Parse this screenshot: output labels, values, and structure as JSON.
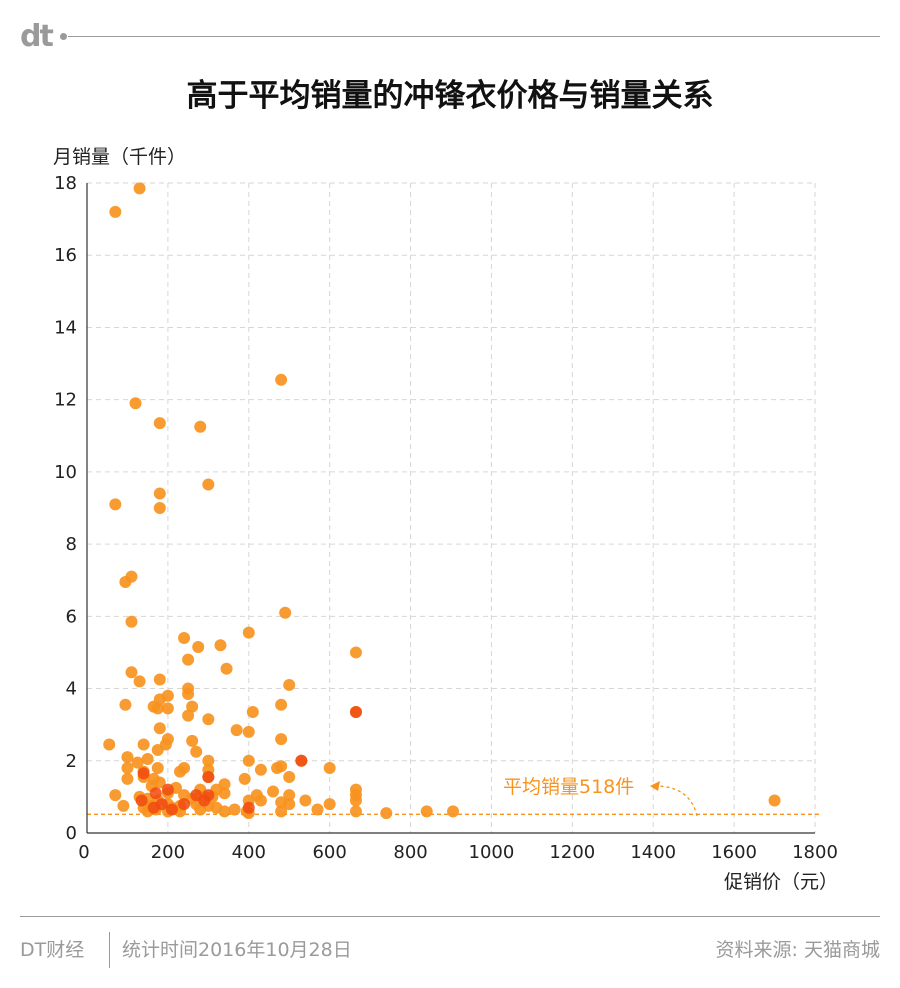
{
  "brand": {
    "logo_text": "dt"
  },
  "title": "高于平均销量的冲锋衣价格与销量关系",
  "footer": {
    "left": "DT财经",
    "middle": "统计时间2016年10月28日",
    "right": "资料来源: 天猫商城"
  },
  "colors": {
    "point_fill": "#F7931E",
    "overlap_fill": "#F04A0F",
    "average_line": "#F7931E",
    "grid": "#d6d6d6",
    "axis": "#333333",
    "muted": "#9a9a9a"
  },
  "chart_data": {
    "type": "scatter",
    "title": "高于平均销量的冲锋衣价格与销量关系",
    "xlabel": "促销价（元）",
    "ylabel": "月销量（千件）",
    "xlim": [
      0,
      1800
    ],
    "ylim": [
      0,
      18
    ],
    "xticks": [
      0,
      200,
      400,
      600,
      800,
      1000,
      1200,
      1400,
      1600,
      1800
    ],
    "yticks": [
      0,
      2,
      4,
      6,
      8,
      10,
      12,
      14,
      16,
      18
    ],
    "grid": true,
    "average_line": {
      "value": 0.518,
      "label": "平均销量518件"
    },
    "points": [
      {
        "x": 130,
        "y": 17.85
      },
      {
        "x": 70,
        "y": 17.2
      },
      {
        "x": 120,
        "y": 11.9
      },
      {
        "x": 180,
        "y": 11.35
      },
      {
        "x": 280,
        "y": 11.25
      },
      {
        "x": 480,
        "y": 12.55
      },
      {
        "x": 300,
        "y": 9.65
      },
      {
        "x": 180,
        "y": 9.4
      },
      {
        "x": 180,
        "y": 9.0
      },
      {
        "x": 70,
        "y": 9.1
      },
      {
        "x": 110,
        "y": 7.1
      },
      {
        "x": 95,
        "y": 6.95
      },
      {
        "x": 110,
        "y": 5.85
      },
      {
        "x": 490,
        "y": 6.1
      },
      {
        "x": 665,
        "y": 5.0
      },
      {
        "x": 400,
        "y": 5.55
      },
      {
        "x": 240,
        "y": 5.4
      },
      {
        "x": 275,
        "y": 5.15
      },
      {
        "x": 330,
        "y": 5.2
      },
      {
        "x": 250,
        "y": 4.8
      },
      {
        "x": 345,
        "y": 4.55
      },
      {
        "x": 110,
        "y": 4.45
      },
      {
        "x": 130,
        "y": 4.2
      },
      {
        "x": 180,
        "y": 4.25
      },
      {
        "x": 500,
        "y": 4.1
      },
      {
        "x": 250,
        "y": 4.0
      },
      {
        "x": 200,
        "y": 3.8
      },
      {
        "x": 250,
        "y": 3.85
      },
      {
        "x": 180,
        "y": 3.7
      },
      {
        "x": 95,
        "y": 3.55
      },
      {
        "x": 165,
        "y": 3.5
      },
      {
        "x": 175,
        "y": 3.45
      },
      {
        "x": 200,
        "y": 3.45
      },
      {
        "x": 260,
        "y": 3.5
      },
      {
        "x": 250,
        "y": 3.25
      },
      {
        "x": 300,
        "y": 3.15
      },
      {
        "x": 410,
        "y": 3.35
      },
      {
        "x": 480,
        "y": 3.55
      },
      {
        "x": 665,
        "y": 3.35
      },
      {
        "x": 180,
        "y": 2.9
      },
      {
        "x": 370,
        "y": 2.85
      },
      {
        "x": 400,
        "y": 2.8
      },
      {
        "x": 480,
        "y": 2.6
      },
      {
        "x": 55,
        "y": 2.45
      },
      {
        "x": 140,
        "y": 2.45
      },
      {
        "x": 195,
        "y": 2.45
      },
      {
        "x": 175,
        "y": 2.3
      },
      {
        "x": 200,
        "y": 2.6
      },
      {
        "x": 260,
        "y": 2.55
      },
      {
        "x": 270,
        "y": 2.25
      },
      {
        "x": 300,
        "y": 2.0
      },
      {
        "x": 400,
        "y": 2.0
      },
      {
        "x": 100,
        "y": 2.1
      },
      {
        "x": 150,
        "y": 2.05
      },
      {
        "x": 125,
        "y": 1.95
      },
      {
        "x": 100,
        "y": 1.8
      },
      {
        "x": 140,
        "y": 1.7
      },
      {
        "x": 175,
        "y": 1.8
      },
      {
        "x": 230,
        "y": 1.7
      },
      {
        "x": 240,
        "y": 1.8
      },
      {
        "x": 300,
        "y": 1.75
      },
      {
        "x": 300,
        "y": 1.55
      },
      {
        "x": 430,
        "y": 1.75
      },
      {
        "x": 470,
        "y": 1.8
      },
      {
        "x": 480,
        "y": 1.85
      },
      {
        "x": 500,
        "y": 1.55
      },
      {
        "x": 600,
        "y": 1.8
      },
      {
        "x": 530,
        "y": 2.0
      },
      {
        "x": 100,
        "y": 1.5
      },
      {
        "x": 165,
        "y": 1.5
      },
      {
        "x": 180,
        "y": 1.4
      },
      {
        "x": 140,
        "y": 1.55
      },
      {
        "x": 160,
        "y": 1.3
      },
      {
        "x": 220,
        "y": 1.25
      },
      {
        "x": 280,
        "y": 1.2
      },
      {
        "x": 320,
        "y": 1.2
      },
      {
        "x": 340,
        "y": 1.35
      },
      {
        "x": 390,
        "y": 1.5
      },
      {
        "x": 420,
        "y": 1.05
      },
      {
        "x": 460,
        "y": 1.15
      },
      {
        "x": 500,
        "y": 1.05
      },
      {
        "x": 665,
        "y": 1.2
      },
      {
        "x": 665,
        "y": 1.05
      },
      {
        "x": 70,
        "y": 1.05
      },
      {
        "x": 130,
        "y": 1.0
      },
      {
        "x": 150,
        "y": 0.95
      },
      {
        "x": 175,
        "y": 0.9
      },
      {
        "x": 200,
        "y": 1.1
      },
      {
        "x": 240,
        "y": 1.05
      },
      {
        "x": 260,
        "y": 0.95
      },
      {
        "x": 290,
        "y": 1.0
      },
      {
        "x": 310,
        "y": 1.0
      },
      {
        "x": 340,
        "y": 1.1
      },
      {
        "x": 400,
        "y": 0.9
      },
      {
        "x": 430,
        "y": 0.9
      },
      {
        "x": 480,
        "y": 0.85
      },
      {
        "x": 500,
        "y": 0.8
      },
      {
        "x": 540,
        "y": 0.9
      },
      {
        "x": 600,
        "y": 0.8
      },
      {
        "x": 665,
        "y": 0.9
      },
      {
        "x": 90,
        "y": 0.75
      },
      {
        "x": 140,
        "y": 0.7
      },
      {
        "x": 160,
        "y": 0.75
      },
      {
        "x": 200,
        "y": 0.8
      },
      {
        "x": 210,
        "y": 0.7
      },
      {
        "x": 230,
        "y": 0.75
      },
      {
        "x": 270,
        "y": 0.8
      },
      {
        "x": 300,
        "y": 0.75
      },
      {
        "x": 320,
        "y": 0.7
      },
      {
        "x": 150,
        "y": 0.6
      },
      {
        "x": 170,
        "y": 0.65
      },
      {
        "x": 200,
        "y": 0.6
      },
      {
        "x": 230,
        "y": 0.6
      },
      {
        "x": 280,
        "y": 0.65
      },
      {
        "x": 340,
        "y": 0.6
      },
      {
        "x": 365,
        "y": 0.65
      },
      {
        "x": 395,
        "y": 0.6
      },
      {
        "x": 400,
        "y": 0.55
      },
      {
        "x": 480,
        "y": 0.6
      },
      {
        "x": 570,
        "y": 0.65
      },
      {
        "x": 665,
        "y": 0.6
      },
      {
        "x": 740,
        "y": 0.55
      },
      {
        "x": 840,
        "y": 0.6
      },
      {
        "x": 905,
        "y": 0.6
      },
      {
        "x": 1700,
        "y": 0.9
      }
    ],
    "overlap_points": [
      {
        "x": 140,
        "y": 1.65
      },
      {
        "x": 170,
        "y": 1.1
      },
      {
        "x": 185,
        "y": 0.8
      },
      {
        "x": 200,
        "y": 1.2
      },
      {
        "x": 240,
        "y": 0.8
      },
      {
        "x": 270,
        "y": 1.05
      },
      {
        "x": 290,
        "y": 0.9
      },
      {
        "x": 300,
        "y": 1.05
      },
      {
        "x": 165,
        "y": 0.7
      },
      {
        "x": 210,
        "y": 0.65
      },
      {
        "x": 135,
        "y": 0.9
      },
      {
        "x": 530,
        "y": 2.0
      },
      {
        "x": 665,
        "y": 3.35
      },
      {
        "x": 400,
        "y": 0.7
      },
      {
        "x": 300,
        "y": 1.55
      }
    ]
  }
}
